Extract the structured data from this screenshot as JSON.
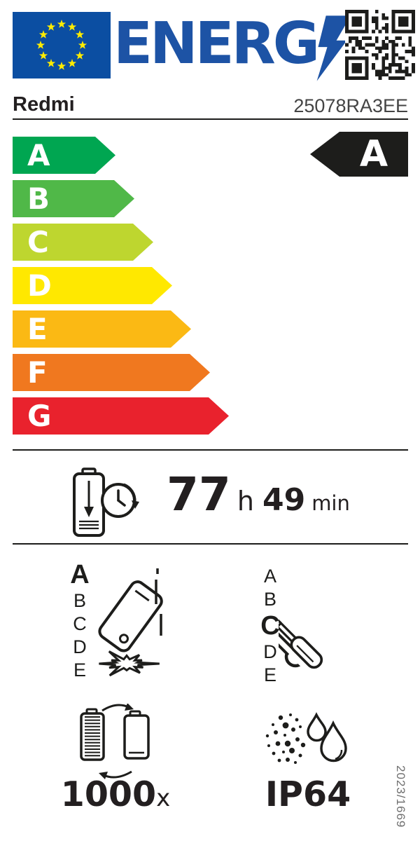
{
  "header": {
    "logo_text": "ENERG",
    "eu_flag_icon": "eu-flag",
    "lightning_icon": "lightning-bolt-icon",
    "qr_icon": "qr-code-icon"
  },
  "product": {
    "brand": "Redmi",
    "model": "25078RA3EE"
  },
  "energy_scale": {
    "rows": [
      {
        "label": "A",
        "color": "#00a651"
      },
      {
        "label": "B",
        "color": "#50b848"
      },
      {
        "label": "C",
        "color": "#bed62f"
      },
      {
        "label": "D",
        "color": "#ffe800"
      },
      {
        "label": "E",
        "color": "#fbb914"
      },
      {
        "label": "F",
        "color": "#f0781f"
      },
      {
        "label": "G",
        "color": "#e9222d"
      }
    ],
    "rated_class": "A",
    "rated_color": "#1d1d1b"
  },
  "battery_endurance": {
    "icon": "battery-discharge-time-icon",
    "hours": "77",
    "hours_unit": "h",
    "minutes": "49",
    "minutes_unit": "min"
  },
  "free_fall": {
    "icon": "falling-phone-icon",
    "classes": [
      "A",
      "B",
      "C",
      "D",
      "E"
    ],
    "rated": "A"
  },
  "repairability": {
    "icon": "wrench-screwdriver-icon",
    "classes": [
      "A",
      "B",
      "C",
      "D",
      "E"
    ],
    "rated": "C"
  },
  "battery_cycles": {
    "icon": "battery-charge-cycles-icon",
    "value": "1000",
    "unit": "x"
  },
  "ingress_protection": {
    "icon": "dust-water-protection-icon",
    "rating": "IP64"
  },
  "regulation": {
    "reference": "2023/1669"
  },
  "colors": {
    "logo_blue": "#1d53a5",
    "flag_blue": "#0b4ea2",
    "star_yellow": "#ffec00",
    "label_black": "#1d1d1b"
  }
}
